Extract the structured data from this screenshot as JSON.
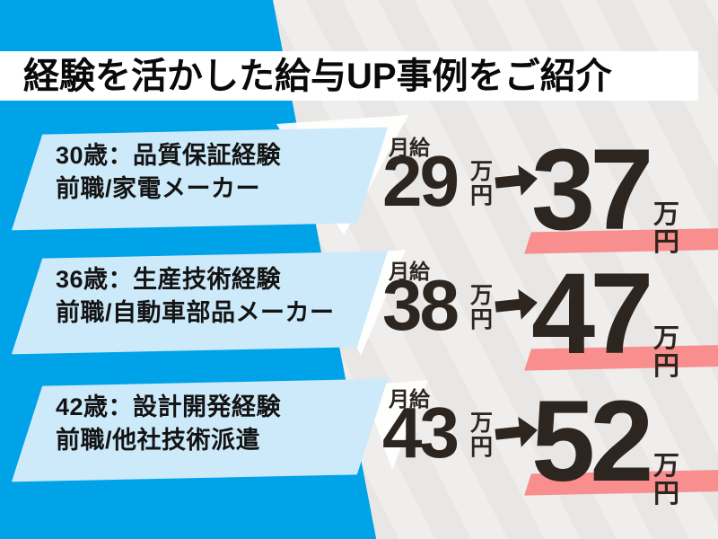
{
  "title": "経験を活かした給与UP事例をご紹介",
  "colors": {
    "blue": "#00a2e8",
    "light_blue": "#cdeafa",
    "pink": "#f98e8e",
    "ink": "#2d2520",
    "gray_background": "#eae9e7"
  },
  "rows": [
    {
      "profile_line1": "30歳：品質保証経験",
      "profile_line2": "前職/家電メーカー",
      "salary_label": "月給",
      "salary_before": "29",
      "salary_after": "37",
      "unit_man": "万",
      "unit_yen": "円"
    },
    {
      "profile_line1": "36歳：生産技術経験",
      "profile_line2": "前職/自動車部品メーカー",
      "salary_label": "月給",
      "salary_before": "38",
      "salary_after": "47",
      "unit_man": "万",
      "unit_yen": "円"
    },
    {
      "profile_line1": "42歳：設計開発経験",
      "profile_line2": "前職/他社技術派遣",
      "salary_label": "月給",
      "salary_before": "43",
      "salary_after": "52",
      "unit_man": "万",
      "unit_yen": "円"
    }
  ]
}
